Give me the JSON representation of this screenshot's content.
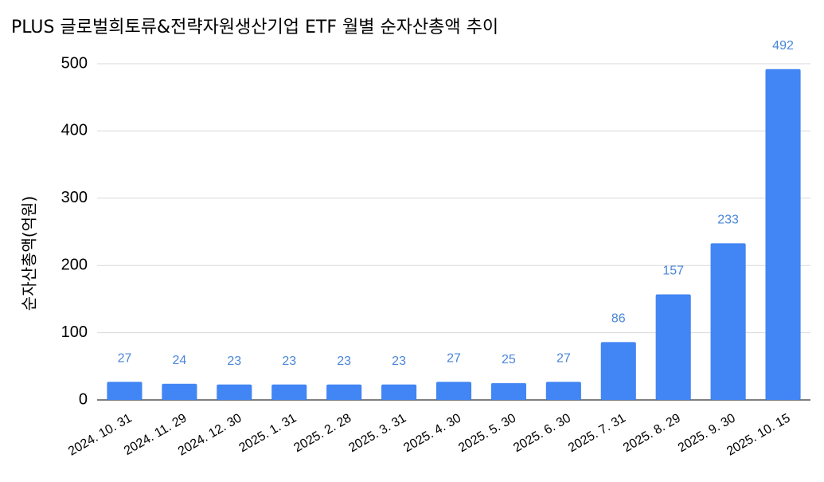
{
  "chart_data": {
    "type": "bar",
    "title": "PLUS 글로벌희토류&전략자원생산기업 ETF  월별 순자산총액 추이",
    "xlabel": "",
    "ylabel": "순자산총액(억원)",
    "categories": [
      "2024. 10. 31",
      "2024. 11. 29",
      "2024. 12. 30",
      "2025. 1. 31",
      "2025. 2. 28",
      "2025. 3. 31",
      "2025. 4. 30",
      "2025. 5. 30",
      "2025. 6. 30",
      "2025. 7. 31",
      "2025. 8. 29",
      "2025. 9. 30",
      "2025. 10. 15"
    ],
    "values": [
      27,
      24,
      23,
      23,
      23,
      23,
      27,
      25,
      27,
      86,
      157,
      233,
      492
    ],
    "ylim": [
      0,
      500
    ],
    "yticks": [
      0,
      100,
      200,
      300,
      400,
      500
    ],
    "grid": true,
    "legend": "none",
    "colors": {
      "bar": "#4285F4",
      "label": "#4A86D9",
      "grid": "#D9D9D9",
      "axis": "#333333"
    }
  }
}
